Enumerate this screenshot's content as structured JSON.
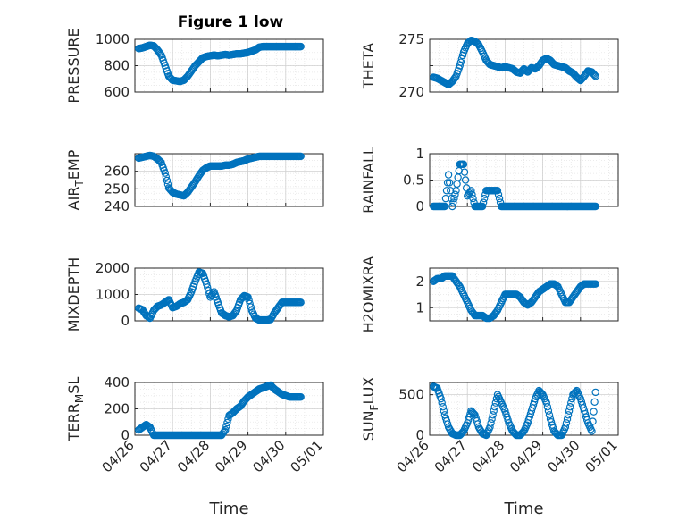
{
  "figure": {
    "title": "Figure 1 low"
  },
  "colors": {
    "marker": "#0072BD",
    "axis": "#262626",
    "grid": "#d0d0d0",
    "minor_grid": "#e6e6e6"
  },
  "chart_data": [
    {
      "type": "scatter",
      "ylabel": "PRESSURE",
      "ylim": [
        600,
        1000
      ],
      "yticks": [
        "600",
        "800",
        "1000"
      ],
      "xlim": [
        0,
        5
      ],
      "xticks": [
        "04/26",
        "04/27",
        "04/28",
        "04/29",
        "04/30",
        "05/01"
      ],
      "xlabel": "",
      "show_xticks": false,
      "grid": true,
      "x": [
        0.1,
        0.2,
        0.3,
        0.4,
        0.5,
        0.6,
        0.7,
        0.8,
        0.9,
        1.0,
        1.1,
        1.2,
        1.3,
        1.4,
        1.5,
        1.6,
        1.7,
        1.8,
        1.9,
        2.0,
        2.1,
        2.2,
        2.3,
        2.4,
        2.5,
        2.6,
        2.7,
        2.8,
        2.9,
        3.0,
        3.1,
        3.2,
        3.3,
        3.4,
        3.5,
        3.6,
        3.7,
        3.8,
        3.9,
        4.0,
        4.1,
        4.2,
        4.3,
        4.4
      ],
      "y": [
        930,
        935,
        945,
        955,
        950,
        920,
        880,
        800,
        720,
        690,
        685,
        680,
        690,
        720,
        760,
        800,
        830,
        860,
        870,
        875,
        880,
        875,
        880,
        885,
        880,
        885,
        890,
        890,
        895,
        900,
        910,
        920,
        940,
        945,
        945,
        945,
        945,
        945,
        945,
        945,
        945,
        945,
        945,
        945
      ]
    },
    {
      "type": "scatter",
      "ylabel": "THETA",
      "ylim": [
        270,
        275
      ],
      "yticks": [
        "270",
        "",
        "275"
      ],
      "xlim": [
        0,
        5
      ],
      "xticks": [
        "04/26",
        "04/27",
        "04/28",
        "04/29",
        "04/30",
        "05/01"
      ],
      "xlabel": "",
      "show_xticks": false,
      "grid": true,
      "x": [
        0.1,
        0.2,
        0.3,
        0.4,
        0.5,
        0.6,
        0.7,
        0.8,
        0.9,
        1.0,
        1.1,
        1.2,
        1.3,
        1.4,
        1.5,
        1.6,
        1.7,
        1.8,
        1.9,
        2.0,
        2.1,
        2.2,
        2.3,
        2.4,
        2.5,
        2.6,
        2.7,
        2.8,
        2.9,
        3.0,
        3.1,
        3.2,
        3.3,
        3.4,
        3.5,
        3.6,
        3.7,
        3.8,
        3.9,
        4.0,
        4.1,
        4.2,
        4.3,
        4.4
      ],
      "y": [
        271.4,
        271.3,
        271.1,
        270.9,
        270.7,
        271.0,
        271.5,
        272.5,
        273.8,
        274.6,
        274.9,
        274.8,
        274.5,
        273.8,
        273.0,
        272.6,
        272.5,
        272.4,
        272.3,
        272.4,
        272.3,
        272.2,
        271.9,
        271.8,
        272.2,
        271.9,
        272.3,
        272.2,
        272.5,
        273.0,
        273.2,
        273.0,
        272.6,
        272.5,
        272.4,
        272.3,
        272.0,
        271.8,
        271.4,
        271.1,
        271.5,
        272.0,
        271.9,
        271.5
      ]
    },
    {
      "type": "scatter",
      "ylabel": "AIR_TEMP",
      "ylim": [
        240,
        270
      ],
      "yticks": [
        "240",
        "250",
        "260"
      ],
      "xlim": [
        0,
        5
      ],
      "xticks": [
        "04/26",
        "04/27",
        "04/28",
        "04/29",
        "04/30",
        "05/01"
      ],
      "xlabel": "",
      "show_xticks": false,
      "grid": true,
      "x": [
        0.1,
        0.2,
        0.3,
        0.4,
        0.5,
        0.6,
        0.7,
        0.8,
        0.9,
        1.0,
        1.1,
        1.2,
        1.3,
        1.4,
        1.5,
        1.6,
        1.7,
        1.8,
        1.9,
        2.0,
        2.1,
        2.2,
        2.3,
        2.4,
        2.5,
        2.6,
        2.7,
        2.8,
        2.9,
        3.0,
        3.1,
        3.2,
        3.3,
        3.4,
        3.5,
        3.6,
        3.7,
        3.8,
        3.9,
        4.0,
        4.1,
        4.2,
        4.3,
        4.4
      ],
      "y": [
        267.5,
        268.0,
        268.5,
        269.0,
        268.5,
        267.0,
        265.0,
        259.0,
        250.5,
        248.0,
        247.0,
        246.5,
        246.0,
        248.0,
        251.0,
        254.0,
        257.5,
        260.5,
        262.0,
        263.0,
        263.0,
        263.0,
        263.0,
        263.5,
        263.5,
        264.0,
        265.0,
        265.5,
        266.0,
        267.0,
        267.5,
        268.0,
        268.5,
        268.5,
        268.5,
        268.5,
        268.5,
        268.5,
        268.5,
        268.5,
        268.5,
        268.5,
        268.5,
        268.5
      ]
    },
    {
      "type": "scatter",
      "ylabel": "RAINFALL",
      "ylim": [
        0,
        1
      ],
      "yticks": [
        "0",
        "0.5",
        "1"
      ],
      "xlim": [
        0,
        5
      ],
      "xticks": [
        "04/26",
        "04/27",
        "04/28",
        "04/29",
        "04/30",
        "05/01"
      ],
      "xlabel": "",
      "show_xticks": false,
      "grid": true,
      "x": [
        0.1,
        0.2,
        0.3,
        0.4,
        0.5,
        0.6,
        0.7,
        0.8,
        0.9,
        1.0,
        1.1,
        1.2,
        1.3,
        1.4,
        1.5,
        1.6,
        1.7,
        1.8,
        1.9,
        2.0,
        2.1,
        2.2,
        2.3,
        2.4,
        2.5,
        2.6,
        2.7,
        2.8,
        2.9,
        3.0,
        3.1,
        3.2,
        3.3,
        3.4,
        3.5,
        3.6,
        3.7,
        3.8,
        3.9,
        4.0,
        4.1,
        4.2,
        4.3,
        4.4
      ],
      "y": [
        0,
        0,
        0,
        0,
        0.6,
        0,
        0.3,
        0.8,
        0.8,
        0.2,
        0.3,
        0,
        0,
        0,
        0.3,
        0.3,
        0.3,
        0.3,
        0,
        0,
        0,
        0,
        0,
        0,
        0,
        0,
        0,
        0,
        0,
        0,
        0,
        0,
        0,
        0,
        0,
        0,
        0,
        0,
        0,
        0,
        0,
        0,
        0,
        0
      ]
    },
    {
      "type": "scatter",
      "ylabel": "MIXDEPTH",
      "ylim": [
        0,
        2000
      ],
      "yticks": [
        "0",
        "1000",
        "2000"
      ],
      "xlim": [
        0,
        5
      ],
      "xticks": [
        "04/26",
        "04/27",
        "04/28",
        "04/29",
        "04/30",
        "05/01"
      ],
      "xlabel": "",
      "show_xticks": false,
      "grid": true,
      "x": [
        0.1,
        0.2,
        0.3,
        0.4,
        0.5,
        0.6,
        0.7,
        0.8,
        0.9,
        1.0,
        1.1,
        1.2,
        1.3,
        1.4,
        1.5,
        1.6,
        1.7,
        1.8,
        1.9,
        2.0,
        2.1,
        2.2,
        2.3,
        2.4,
        2.5,
        2.6,
        2.7,
        2.8,
        2.9,
        3.0,
        3.1,
        3.2,
        3.3,
        3.4,
        3.5,
        3.6,
        3.7,
        3.8,
        3.9,
        4.0,
        4.1,
        4.2,
        4.3,
        4.4
      ],
      "y": [
        480,
        420,
        200,
        100,
        400,
        550,
        600,
        700,
        800,
        500,
        550,
        650,
        700,
        800,
        1100,
        1500,
        1850,
        1800,
        1400,
        900,
        1100,
        700,
        300,
        200,
        150,
        200,
        400,
        800,
        950,
        900,
        400,
        100,
        30,
        30,
        30,
        50,
        300,
        500,
        700,
        700,
        700,
        700,
        700,
        700
      ]
    },
    {
      "type": "scatter",
      "ylabel": "H2OMIXRA",
      "ylim": [
        0.5,
        2.5
      ],
      "yticks": [
        "1",
        "2"
      ],
      "xlim": [
        0,
        5
      ],
      "xticks": [
        "04/26",
        "04/27",
        "04/28",
        "04/29",
        "04/30",
        "05/01"
      ],
      "xlabel": "",
      "show_xticks": false,
      "grid": true,
      "x": [
        0.1,
        0.2,
        0.3,
        0.4,
        0.5,
        0.6,
        0.7,
        0.8,
        0.9,
        1.0,
        1.1,
        1.2,
        1.3,
        1.4,
        1.5,
        1.6,
        1.7,
        1.8,
        1.9,
        2.0,
        2.1,
        2.2,
        2.3,
        2.4,
        2.5,
        2.6,
        2.7,
        2.8,
        2.9,
        3.0,
        3.1,
        3.2,
        3.3,
        3.4,
        3.5,
        3.6,
        3.7,
        3.8,
        3.9,
        4.0,
        4.1,
        4.2,
        4.3,
        4.4
      ],
      "y": [
        2.0,
        2.1,
        2.1,
        2.2,
        2.2,
        2.2,
        2.0,
        1.8,
        1.5,
        1.2,
        0.9,
        0.7,
        0.7,
        0.7,
        0.6,
        0.6,
        0.7,
        0.9,
        1.2,
        1.5,
        1.5,
        1.5,
        1.5,
        1.4,
        1.2,
        1.1,
        1.2,
        1.4,
        1.6,
        1.7,
        1.8,
        1.9,
        1.9,
        1.8,
        1.5,
        1.2,
        1.2,
        1.4,
        1.6,
        1.8,
        1.9,
        1.9,
        1.9,
        1.9
      ]
    },
    {
      "type": "scatter",
      "ylabel": "TERR_MSL",
      "ylim": [
        0,
        400
      ],
      "yticks": [
        "0",
        "200",
        "400"
      ],
      "xlim": [
        0,
        5
      ],
      "xticks": [
        "04/26",
        "04/27",
        "04/28",
        "04/29",
        "04/30",
        "05/01"
      ],
      "xlabel": "Time",
      "show_xticks": true,
      "grid": true,
      "x": [
        0.1,
        0.2,
        0.3,
        0.4,
        0.5,
        0.6,
        0.7,
        0.8,
        0.9,
        1.0,
        1.1,
        1.2,
        1.3,
        1.4,
        1.5,
        1.6,
        1.7,
        1.8,
        1.9,
        2.0,
        2.1,
        2.2,
        2.3,
        2.4,
        2.5,
        2.6,
        2.7,
        2.8,
        2.9,
        3.0,
        3.1,
        3.2,
        3.3,
        3.4,
        3.5,
        3.6,
        3.7,
        3.8,
        3.9,
        4.0,
        4.1,
        4.2,
        4.3,
        4.4
      ],
      "y": [
        40,
        60,
        80,
        60,
        0,
        0,
        0,
        0,
        0,
        0,
        0,
        0,
        0,
        0,
        0,
        0,
        0,
        0,
        0,
        0,
        0,
        0,
        0,
        40,
        150,
        170,
        200,
        220,
        260,
        290,
        310,
        330,
        350,
        360,
        370,
        380,
        350,
        330,
        310,
        300,
        290,
        290,
        290,
        290
      ]
    },
    {
      "type": "scatter",
      "ylabel": "SUN_FLUX",
      "ylim": [
        0,
        650
      ],
      "yticks": [
        "0",
        "500"
      ],
      "xlim": [
        0,
        5
      ],
      "xticks": [
        "04/26",
        "04/27",
        "04/28",
        "04/29",
        "04/30",
        "05/01"
      ],
      "xlabel": "Time",
      "show_xticks": true,
      "grid": true,
      "x": [
        0.1,
        0.2,
        0.3,
        0.4,
        0.5,
        0.6,
        0.7,
        0.8,
        0.9,
        1.0,
        1.1,
        1.2,
        1.3,
        1.4,
        1.5,
        1.6,
        1.7,
        1.8,
        1.9,
        2.0,
        2.1,
        2.2,
        2.3,
        2.4,
        2.5,
        2.6,
        2.7,
        2.8,
        2.9,
        3.0,
        3.1,
        3.2,
        3.3,
        3.4,
        3.5,
        3.6,
        3.7,
        3.8,
        3.9,
        4.0,
        4.1,
        4.2,
        4.3,
        4.4
      ],
      "y": [
        600,
        580,
        450,
        250,
        100,
        20,
        0,
        0,
        50,
        150,
        300,
        250,
        100,
        20,
        0,
        100,
        300,
        500,
        400,
        300,
        150,
        50,
        0,
        0,
        50,
        150,
        300,
        450,
        550,
        500,
        400,
        200,
        50,
        0,
        0,
        100,
        300,
        500,
        550,
        450,
        300,
        150,
        50,
        530
      ]
    }
  ]
}
